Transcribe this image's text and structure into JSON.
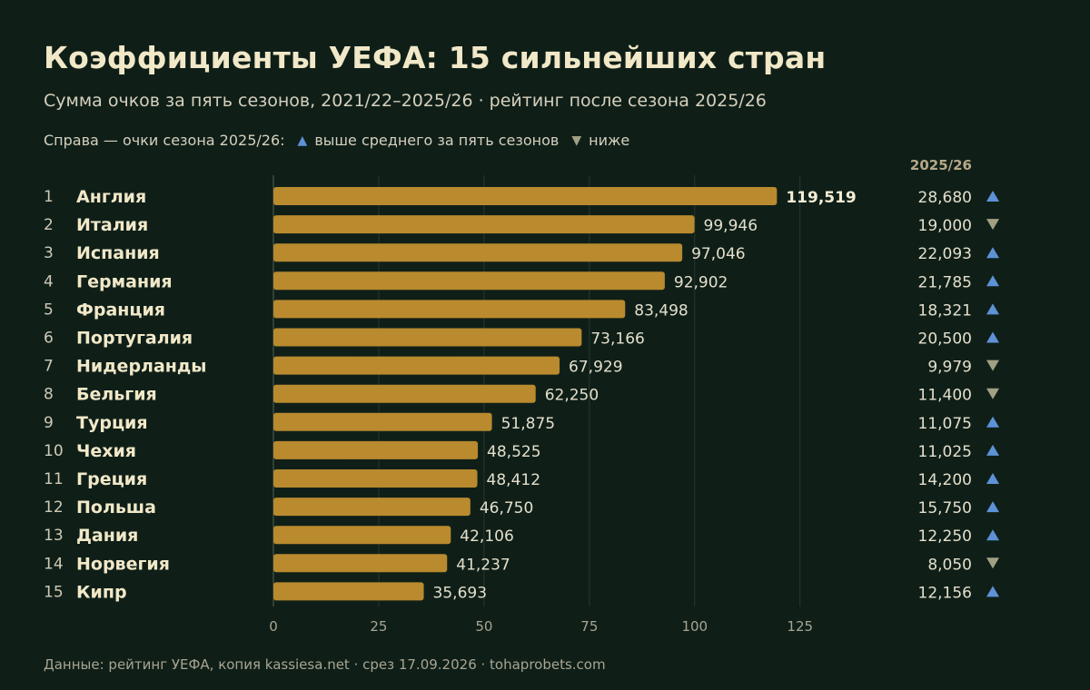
{
  "header": {
    "title": "Коэффициенты УЕФА: 15 сильнейших стран",
    "subtitle": "Сумма очков за пять сезонов, 2021/22–2025/26 · рейтинг после сезона 2025/26",
    "legend_prefix": "Справа — очки сезона 2025/26:",
    "legend_up": "выше среднего за пять сезонов",
    "legend_down": "ниже",
    "season_column_header": "2025/26"
  },
  "colors": {
    "background": "#0f1f18",
    "bar": "#b98a2e",
    "up_marker": "#5e92d6",
    "down_marker": "#a0a083"
  },
  "chart_data": {
    "type": "bar",
    "orientation": "horizontal",
    "ranks": [
      "1",
      "2",
      "3",
      "4",
      "5",
      "6",
      "7",
      "8",
      "9",
      "10",
      "11",
      "12",
      "13",
      "14",
      "15"
    ],
    "categories": [
      "Англия",
      "Италия",
      "Испания",
      "Германия",
      "Франция",
      "Португалия",
      "Нидерланды",
      "Бельгия",
      "Турция",
      "Чехия",
      "Греция",
      "Польша",
      "Дания",
      "Норвегия",
      "Кипр"
    ],
    "values": [
      119.519,
      99.946,
      97.046,
      92.902,
      83.498,
      73.166,
      67.929,
      62.25,
      51.875,
      48.525,
      48.412,
      46.75,
      42.106,
      41.237,
      35.693
    ],
    "value_labels": [
      "119,519",
      "99,946",
      "97,046",
      "92,902",
      "83,498",
      "73,166",
      "67,929",
      "62,250",
      "51,875",
      "48,525",
      "48,412",
      "46,750",
      "42,106",
      "41,237",
      "35,693"
    ],
    "season_values": [
      28.68,
      19.0,
      22.093,
      21.785,
      18.321,
      20.5,
      9.979,
      11.4,
      11.075,
      11.025,
      14.2,
      15.75,
      12.25,
      8.05,
      12.156
    ],
    "season_labels": [
      "28,680",
      "19,000",
      "22,093",
      "21,785",
      "18,321",
      "20,500",
      "9,979",
      "11,400",
      "11,075",
      "11,025",
      "14,200",
      "15,750",
      "12,250",
      "8,050",
      "12,156"
    ],
    "season_trend": [
      "up",
      "down",
      "up",
      "up",
      "up",
      "up",
      "down",
      "down",
      "up",
      "up",
      "up",
      "up",
      "up",
      "down",
      "up"
    ],
    "xticks": [
      0,
      25,
      50,
      75,
      100,
      125
    ],
    "xlim": [
      0,
      125
    ],
    "grid": true,
    "legend_position": "top-left"
  },
  "footer": {
    "source": "Данные: рейтинг УЕФА, копия kassiesa.net · срез 17.09.2026 · tohaprobets.com"
  }
}
